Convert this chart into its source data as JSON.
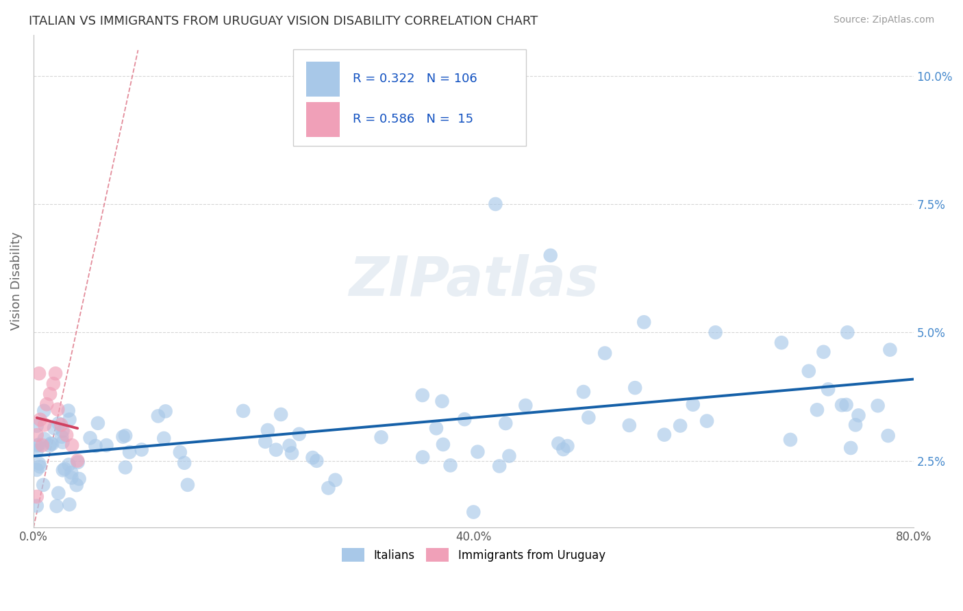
{
  "title": "ITALIAN VS IMMIGRANTS FROM URUGUAY VISION DISABILITY CORRELATION CHART",
  "source": "Source: ZipAtlas.com",
  "ylabel": "Vision Disability",
  "xlim": [
    0,
    0.8
  ],
  "ylim": [
    0.012,
    0.108
  ],
  "yticks": [
    0.025,
    0.05,
    0.075,
    0.1
  ],
  "ytick_labels": [
    "2.5%",
    "5.0%",
    "7.5%",
    "10.0%"
  ],
  "xticks": [
    0.0,
    0.08,
    0.16,
    0.24,
    0.32,
    0.4,
    0.48,
    0.56,
    0.64,
    0.72,
    0.8
  ],
  "xtick_labels": [
    "0.0%",
    "",
    "",
    "",
    "",
    "40.0%",
    "",
    "",
    "",
    "",
    "80.0%"
  ],
  "legend_R1": "0.322",
  "legend_N1": "106",
  "legend_R2": "0.586",
  "legend_N2": "15",
  "italian_color": "#a8c8e8",
  "uruguay_color": "#f0a0b8",
  "italian_line_color": "#1560a8",
  "uruguay_line_color": "#d04060",
  "ref_line_color": "#e08090",
  "background_color": "#ffffff",
  "watermark_text": "ZIPatlas",
  "title_color": "#333333",
  "legend_text_color": "#1050c0",
  "axis_color": "#bbbbbb",
  "grid_color": "#cccccc"
}
